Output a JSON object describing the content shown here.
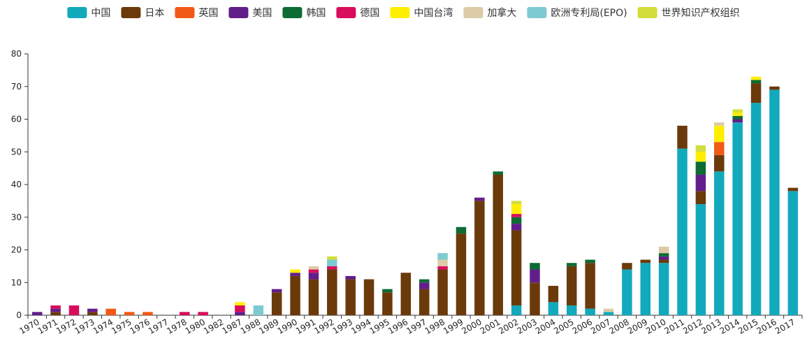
{
  "chart_data": {
    "type": "bar",
    "stacked": true,
    "title": "",
    "xlabel": "",
    "ylabel": "",
    "ylim": [
      0,
      80
    ],
    "yticks": [
      0,
      10,
      20,
      30,
      40,
      50,
      60,
      70,
      80
    ],
    "grid": false,
    "legend_position": "top",
    "categories": [
      "1970",
      "1971",
      "1972",
      "1973",
      "1974",
      "1975",
      "1976",
      "1977",
      "1978",
      "1980",
      "1982",
      "1987",
      "1988",
      "1989",
      "1990",
      "1991",
      "1992",
      "1993",
      "1994",
      "1995",
      "1996",
      "1997",
      "1998",
      "1999",
      "2000",
      "2001",
      "2002",
      "2003",
      "2004",
      "2005",
      "2006",
      "2007",
      "2008",
      "2009",
      "2010",
      "2011",
      "2012",
      "2013",
      "2014",
      "2015",
      "2016",
      "2017"
    ],
    "series": [
      {
        "name": "中国",
        "color": "#13a9bc",
        "values": [
          0,
          0,
          0,
          0,
          0,
          0,
          0,
          0,
          0,
          0,
          0,
          0,
          0,
          0,
          0,
          0,
          0,
          0,
          0,
          0,
          0,
          0,
          0,
          0,
          0,
          0,
          3,
          0,
          4,
          3,
          2,
          1,
          14,
          16,
          16,
          51,
          34,
          44,
          59,
          65,
          69,
          38
        ]
      },
      {
        "name": "日本",
        "color": "#6b3a0a",
        "values": [
          0,
          1,
          0,
          1,
          0,
          0,
          0,
          0,
          0,
          0,
          0,
          0,
          0,
          7,
          12,
          11,
          14,
          11,
          11,
          7,
          13,
          8,
          14,
          25,
          35,
          43,
          23,
          10,
          5,
          12,
          14,
          0,
          2,
          1,
          1,
          7,
          4,
          5,
          0,
          6,
          1,
          1
        ]
      },
      {
        "name": "英国",
        "color": "#f05a16",
        "values": [
          0,
          0,
          0,
          0,
          2,
          1,
          1,
          0,
          0,
          0,
          0,
          0,
          0,
          0,
          0,
          0,
          0,
          0,
          0,
          0,
          0,
          0,
          0,
          0,
          0,
          0,
          0,
          0,
          0,
          0,
          0,
          0,
          0,
          0,
          0,
          0,
          0,
          4,
          0,
          0,
          0,
          0
        ]
      },
      {
        "name": "美国",
        "color": "#611e8a",
        "values": [
          1,
          1,
          0,
          1,
          0,
          0,
          0,
          0,
          0,
          0,
          0,
          1,
          0,
          1,
          1,
          2,
          0,
          1,
          0,
          0,
          0,
          2,
          0,
          0,
          1,
          0,
          2,
          4,
          0,
          0,
          0,
          0,
          0,
          0,
          1,
          0,
          5,
          0,
          1,
          0,
          0,
          0
        ]
      },
      {
        "name": "韩国",
        "color": "#0d6b33",
        "values": [
          0,
          0,
          0,
          0,
          0,
          0,
          0,
          0,
          0,
          0,
          0,
          0,
          0,
          0,
          0,
          0,
          0,
          0,
          0,
          1,
          0,
          1,
          0,
          2,
          0,
          1,
          2,
          2,
          0,
          1,
          1,
          0,
          0,
          0,
          1,
          0,
          4,
          0,
          1,
          1,
          0,
          0
        ]
      },
      {
        "name": "德国",
        "color": "#d80d5c",
        "values": [
          0,
          1,
          3,
          0,
          0,
          0,
          0,
          0,
          1,
          1,
          0,
          2,
          0,
          0,
          0,
          1,
          1,
          0,
          0,
          0,
          0,
          0,
          1,
          0,
          0,
          0,
          1,
          0,
          0,
          0,
          0,
          0,
          0,
          0,
          0,
          0,
          0,
          0,
          0,
          0,
          0,
          0
        ]
      },
      {
        "name": "中国台湾",
        "color": "#ffee00",
        "values": [
          0,
          0,
          0,
          0,
          0,
          0,
          0,
          0,
          0,
          0,
          0,
          1,
          0,
          0,
          1,
          0,
          0,
          0,
          0,
          0,
          0,
          0,
          0,
          0,
          0,
          0,
          3,
          0,
          0,
          0,
          0,
          0,
          0,
          0,
          0,
          0,
          3,
          5,
          1,
          1,
          0,
          0
        ]
      },
      {
        "name": "加拿大",
        "color": "#ddcba8",
        "values": [
          0,
          0,
          0,
          0,
          0,
          0,
          0,
          0,
          0,
          0,
          0,
          0,
          0,
          0,
          0,
          1,
          0,
          0,
          0,
          0,
          0,
          0,
          2,
          0,
          0,
          0,
          0,
          0,
          0,
          0,
          0,
          1,
          0,
          0,
          2,
          0,
          0,
          1,
          0,
          0,
          0,
          0
        ]
      },
      {
        "name": "欧洲专利局(EPO)",
        "color": "#7dcbd1",
        "values": [
          0,
          0,
          0,
          0,
          0,
          0,
          0,
          0,
          0,
          0,
          0,
          0,
          3,
          0,
          0,
          0,
          2,
          0,
          0,
          0,
          0,
          0,
          2,
          0,
          0,
          0,
          0,
          0,
          0,
          0,
          0,
          0,
          0,
          0,
          0,
          0,
          0,
          0,
          0,
          0,
          0,
          0
        ]
      },
      {
        "name": "世界知识产权组织",
        "color": "#d3dd3b",
        "values": [
          0,
          0,
          0,
          0,
          0,
          0,
          0,
          0,
          0,
          0,
          0,
          0,
          0,
          0,
          0,
          0,
          1,
          0,
          0,
          0,
          0,
          0,
          0,
          0,
          0,
          0,
          1,
          0,
          0,
          0,
          0,
          0,
          0,
          0,
          0,
          0,
          2,
          0,
          1,
          0,
          0,
          0
        ]
      }
    ]
  }
}
